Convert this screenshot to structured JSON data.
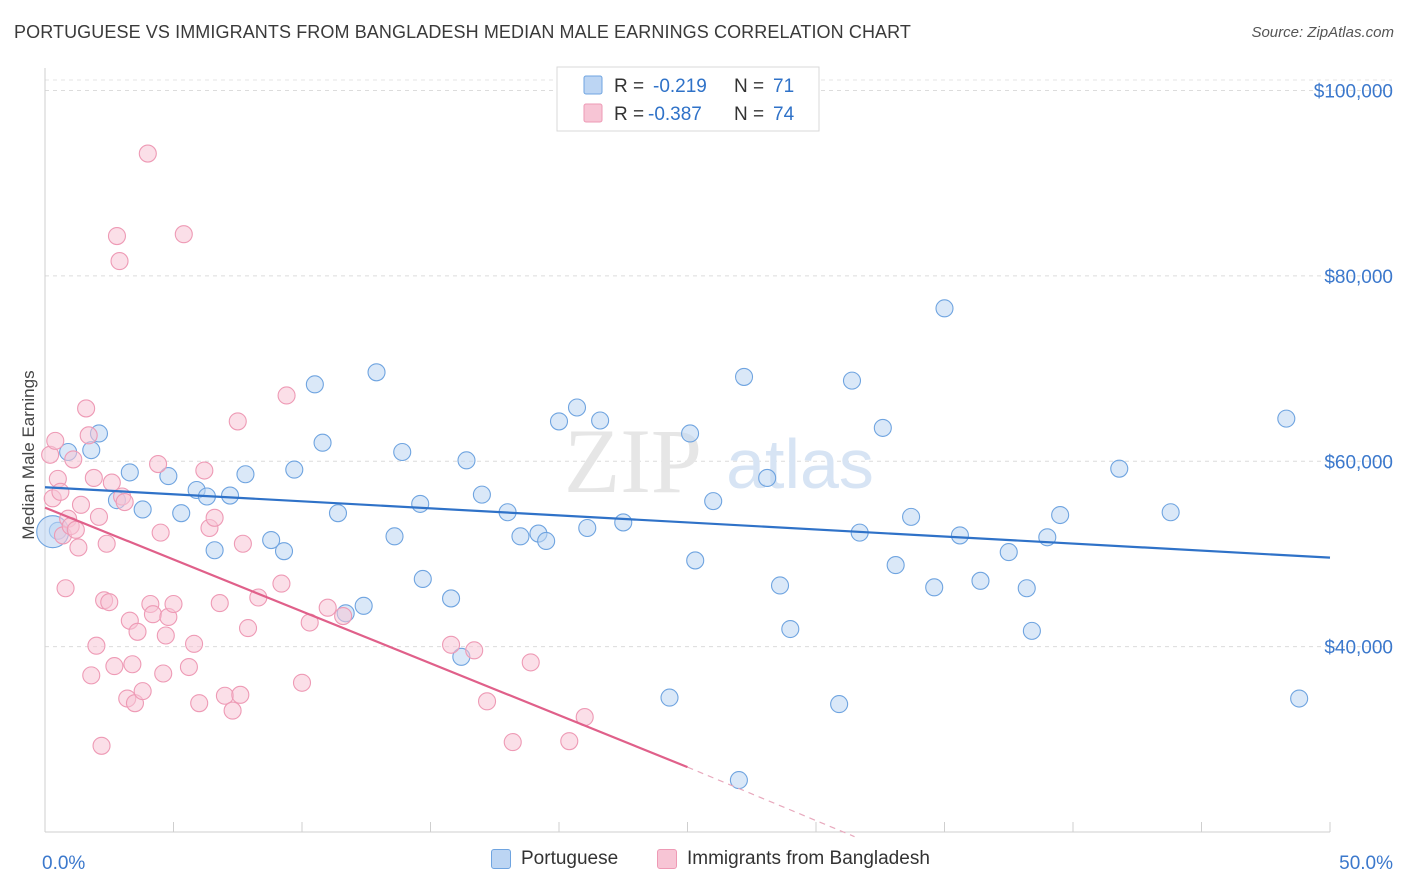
{
  "title": "PORTUGUESE VS IMMIGRANTS FROM BANGLADESH MEDIAN MALE EARNINGS CORRELATION CHART",
  "source": "Source: ZipAtlas.com",
  "watermark": {
    "zip": "ZIP",
    "atlas": "atlas"
  },
  "chart_data": {
    "type": "scatter",
    "xlabel": "",
    "ylabel": "Median Male Earnings",
    "xlim": [
      0,
      50
    ],
    "ylim": [
      20000,
      102000
    ],
    "x_tick_labels": [
      "0.0%",
      "50.0%"
    ],
    "y_ticks": [
      {
        "value": 40000,
        "label": "$40,000"
      },
      {
        "value": 60000,
        "label": "$60,000"
      },
      {
        "value": 80000,
        "label": "$80,000"
      },
      {
        "value": 100000,
        "label": "$100,000"
      }
    ],
    "grid": "horizontal-dashed",
    "legend_placement": "top-center and bottom",
    "stats_legend": [
      {
        "r_label": "R =",
        "r_value": "-0.219",
        "n_label": "N =",
        "n_value": "71",
        "series": "Portuguese"
      },
      {
        "r_label": "R =",
        "r_value": "-0.387",
        "n_label": "N =",
        "n_value": "74",
        "series": "Immigrants from Bangladesh"
      }
    ],
    "series": [
      {
        "name": "Portuguese",
        "color": "#6fa4e0",
        "fill": "#bcd5f3",
        "line_color": "#2f72c8",
        "trend": {
          "x": [
            0,
            50
          ],
          "y": [
            57200,
            49600
          ]
        },
        "points": [
          [
            0.5,
            52500
          ],
          [
            0.9,
            61000
          ],
          [
            1.8,
            61200
          ],
          [
            2.1,
            63000
          ],
          [
            2.8,
            55800
          ],
          [
            3.3,
            58800
          ],
          [
            3.8,
            54800
          ],
          [
            4.8,
            58400
          ],
          [
            5.3,
            54400
          ],
          [
            5.9,
            56900
          ],
          [
            6.3,
            56200
          ],
          [
            6.6,
            50400
          ],
          [
            7.2,
            56300
          ],
          [
            7.8,
            58600
          ],
          [
            8.8,
            51500
          ],
          [
            9.3,
            50300
          ],
          [
            9.7,
            59100
          ],
          [
            10.5,
            68300
          ],
          [
            10.8,
            62000
          ],
          [
            11.4,
            54400
          ],
          [
            11.7,
            43600
          ],
          [
            12.4,
            44400
          ],
          [
            12.9,
            69600
          ],
          [
            13.6,
            51900
          ],
          [
            13.9,
            61000
          ],
          [
            14.6,
            55400
          ],
          [
            14.7,
            47300
          ],
          [
            15.8,
            45200
          ],
          [
            16.2,
            38900
          ],
          [
            16.4,
            60100
          ],
          [
            17.0,
            56400
          ],
          [
            18.0,
            54500
          ],
          [
            18.5,
            51900
          ],
          [
            19.2,
            52200
          ],
          [
            19.5,
            51400
          ],
          [
            20.0,
            64300
          ],
          [
            20.7,
            65800
          ],
          [
            21.1,
            52800
          ],
          [
            21.6,
            64400
          ],
          [
            22.5,
            53400
          ],
          [
            24.3,
            34500
          ],
          [
            25.1,
            63000
          ],
          [
            25.3,
            49300
          ],
          [
            26.0,
            55700
          ],
          [
            27.0,
            25600
          ],
          [
            27.2,
            69100
          ],
          [
            28.1,
            58200
          ],
          [
            28.6,
            46600
          ],
          [
            29.0,
            41900
          ],
          [
            30.9,
            33800
          ],
          [
            31.4,
            68700
          ],
          [
            31.7,
            52300
          ],
          [
            32.6,
            63600
          ],
          [
            33.1,
            48800
          ],
          [
            33.7,
            54000
          ],
          [
            34.6,
            46400
          ],
          [
            35.0,
            76500
          ],
          [
            35.6,
            52000
          ],
          [
            36.4,
            47100
          ],
          [
            37.5,
            50200
          ],
          [
            38.2,
            46300
          ],
          [
            38.4,
            41700
          ],
          [
            39.0,
            51800
          ],
          [
            39.5,
            54200
          ],
          [
            41.8,
            59200
          ],
          [
            43.8,
            54500
          ],
          [
            48.3,
            64600
          ],
          [
            48.8,
            34400
          ]
        ]
      },
      {
        "name": "Immigrants from Bangladesh",
        "color": "#ee9ab5",
        "fill": "#f7c5d5",
        "line_color": "#e0608a",
        "trend": {
          "x": [
            0,
            25
          ],
          "y": [
            55000,
            27000
          ]
        },
        "trend_dashed": {
          "x": [
            25,
            31.5
          ],
          "y": [
            27000,
            19500
          ]
        },
        "points": [
          [
            0.2,
            60700
          ],
          [
            0.3,
            56000
          ],
          [
            0.4,
            62200
          ],
          [
            0.5,
            58100
          ],
          [
            0.6,
            56700
          ],
          [
            0.7,
            52000
          ],
          [
            0.8,
            46300
          ],
          [
            0.9,
            53800
          ],
          [
            1.0,
            53000
          ],
          [
            1.1,
            60200
          ],
          [
            1.2,
            52600
          ],
          [
            1.3,
            50700
          ],
          [
            1.4,
            55300
          ],
          [
            1.6,
            65700
          ],
          [
            1.7,
            62800
          ],
          [
            1.8,
            36900
          ],
          [
            1.9,
            58200
          ],
          [
            2.0,
            40100
          ],
          [
            2.1,
            54000
          ],
          [
            2.2,
            29300
          ],
          [
            2.3,
            45000
          ],
          [
            2.4,
            51100
          ],
          [
            2.5,
            44800
          ],
          [
            2.6,
            57700
          ],
          [
            2.7,
            37900
          ],
          [
            2.8,
            84300
          ],
          [
            2.9,
            81600
          ],
          [
            3.0,
            56200
          ],
          [
            3.1,
            55600
          ],
          [
            3.2,
            34400
          ],
          [
            3.3,
            42800
          ],
          [
            3.4,
            38100
          ],
          [
            3.5,
            33900
          ],
          [
            3.6,
            41600
          ],
          [
            3.8,
            35200
          ],
          [
            4.0,
            93200
          ],
          [
            4.1,
            44600
          ],
          [
            4.2,
            43500
          ],
          [
            4.4,
            59700
          ],
          [
            4.5,
            52300
          ],
          [
            4.6,
            37100
          ],
          [
            4.7,
            41200
          ],
          [
            4.8,
            43200
          ],
          [
            5.0,
            44600
          ],
          [
            5.4,
            84500
          ],
          [
            5.6,
            37800
          ],
          [
            5.8,
            40300
          ],
          [
            6.0,
            33900
          ],
          [
            6.2,
            59000
          ],
          [
            6.4,
            52800
          ],
          [
            6.6,
            53900
          ],
          [
            6.8,
            44700
          ],
          [
            7.0,
            34700
          ],
          [
            7.3,
            33100
          ],
          [
            7.5,
            64300
          ],
          [
            7.6,
            34800
          ],
          [
            7.7,
            51100
          ],
          [
            7.9,
            42000
          ],
          [
            8.3,
            45300
          ],
          [
            9.2,
            46800
          ],
          [
            9.4,
            67100
          ],
          [
            10.0,
            36100
          ],
          [
            10.3,
            42600
          ],
          [
            11.0,
            44200
          ],
          [
            11.6,
            43300
          ],
          [
            15.8,
            40200
          ],
          [
            16.7,
            39600
          ],
          [
            17.2,
            34100
          ],
          [
            18.2,
            29700
          ],
          [
            18.9,
            38300
          ],
          [
            20.4,
            29800
          ],
          [
            21.0,
            32400
          ]
        ]
      }
    ]
  }
}
